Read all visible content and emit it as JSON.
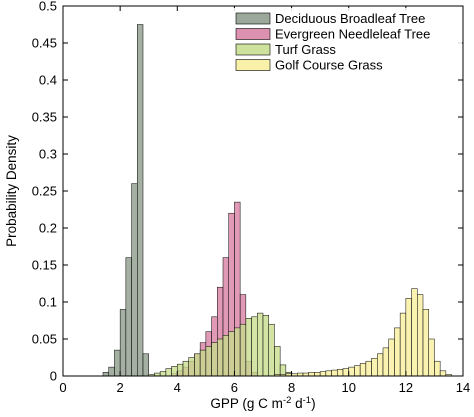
{
  "chart_data": {
    "type": "bar",
    "chart_kind": "overlapping-histogram",
    "xlabel": "GPP (g C m",
    "xlabel_sup1": "-2",
    "xlabel_mid": " d",
    "xlabel_sup2": "-1",
    "xlabel_end": ")",
    "ylabel": "Probability Density",
    "xlim": [
      0,
      14
    ],
    "ylim": [
      0,
      0.5
    ],
    "xticks": [
      0,
      2,
      4,
      6,
      8,
      10,
      12,
      14
    ],
    "yticks": [
      0,
      0.05,
      0.1,
      0.15,
      0.2,
      0.25,
      0.3,
      0.35,
      0.4,
      0.45,
      0.5
    ],
    "ytick_labels": [
      "0",
      "0.05",
      "0.1",
      "0.15",
      "0.2",
      "0.25",
      "0.3",
      "0.35",
      "0.4",
      "0.45",
      "0.5"
    ],
    "legend_position": "top-right",
    "grid": false,
    "bin_width": 0.2,
    "series": [
      {
        "name": "Deciduous Broadleaf Tree",
        "color": "#8b9a88",
        "x": [
          1.5,
          1.7,
          1.9,
          2.1,
          2.3,
          2.5,
          2.7,
          2.9
        ],
        "values": [
          0.005,
          0.012,
          0.035,
          0.09,
          0.16,
          0.26,
          0.475,
          0.03
        ]
      },
      {
        "name": "Evergreen Needleleaf Tree",
        "color": "#d77ea2",
        "x": [
          3.9,
          4.1,
          4.3,
          4.5,
          4.7,
          4.9,
          5.1,
          5.3,
          5.5,
          5.7,
          5.9,
          6.1,
          6.3,
          6.5,
          6.7
        ],
        "values": [
          0.003,
          0.007,
          0.012,
          0.02,
          0.03,
          0.045,
          0.06,
          0.08,
          0.12,
          0.16,
          0.22,
          0.235,
          0.11,
          0.02,
          0.005
        ]
      },
      {
        "name": "Turf Grass",
        "color": "#c6dd8c",
        "x": [
          3.1,
          3.3,
          3.5,
          3.7,
          3.9,
          4.1,
          4.3,
          4.5,
          4.7,
          4.9,
          5.1,
          5.3,
          5.5,
          5.7,
          5.9,
          6.1,
          6.3,
          6.5,
          6.7,
          6.9,
          7.1,
          7.3,
          7.5,
          7.7,
          7.9
        ],
        "values": [
          0.002,
          0.004,
          0.006,
          0.01,
          0.013,
          0.016,
          0.02,
          0.025,
          0.03,
          0.035,
          0.04,
          0.045,
          0.05,
          0.055,
          0.06,
          0.065,
          0.07,
          0.078,
          0.08,
          0.085,
          0.082,
          0.07,
          0.04,
          0.015,
          0.005
        ]
      },
      {
        "name": "Golf Course Grass",
        "color": "#f8ee9a",
        "x": [
          7.5,
          7.7,
          7.9,
          8.1,
          8.3,
          8.5,
          8.7,
          8.9,
          9.1,
          9.3,
          9.5,
          9.7,
          9.9,
          10.1,
          10.3,
          10.5,
          10.7,
          10.9,
          11.1,
          11.3,
          11.5,
          11.7,
          11.9,
          12.1,
          12.3,
          12.5,
          12.7,
          12.9,
          13.1,
          13.3,
          13.5
        ],
        "values": [
          0.002,
          0.002,
          0.003,
          0.003,
          0.004,
          0.004,
          0.005,
          0.005,
          0.006,
          0.007,
          0.008,
          0.009,
          0.01,
          0.012,
          0.014,
          0.017,
          0.02,
          0.024,
          0.03,
          0.038,
          0.05,
          0.065,
          0.085,
          0.105,
          0.118,
          0.11,
          0.09,
          0.05,
          0.02,
          0.007,
          0.002
        ]
      }
    ]
  }
}
